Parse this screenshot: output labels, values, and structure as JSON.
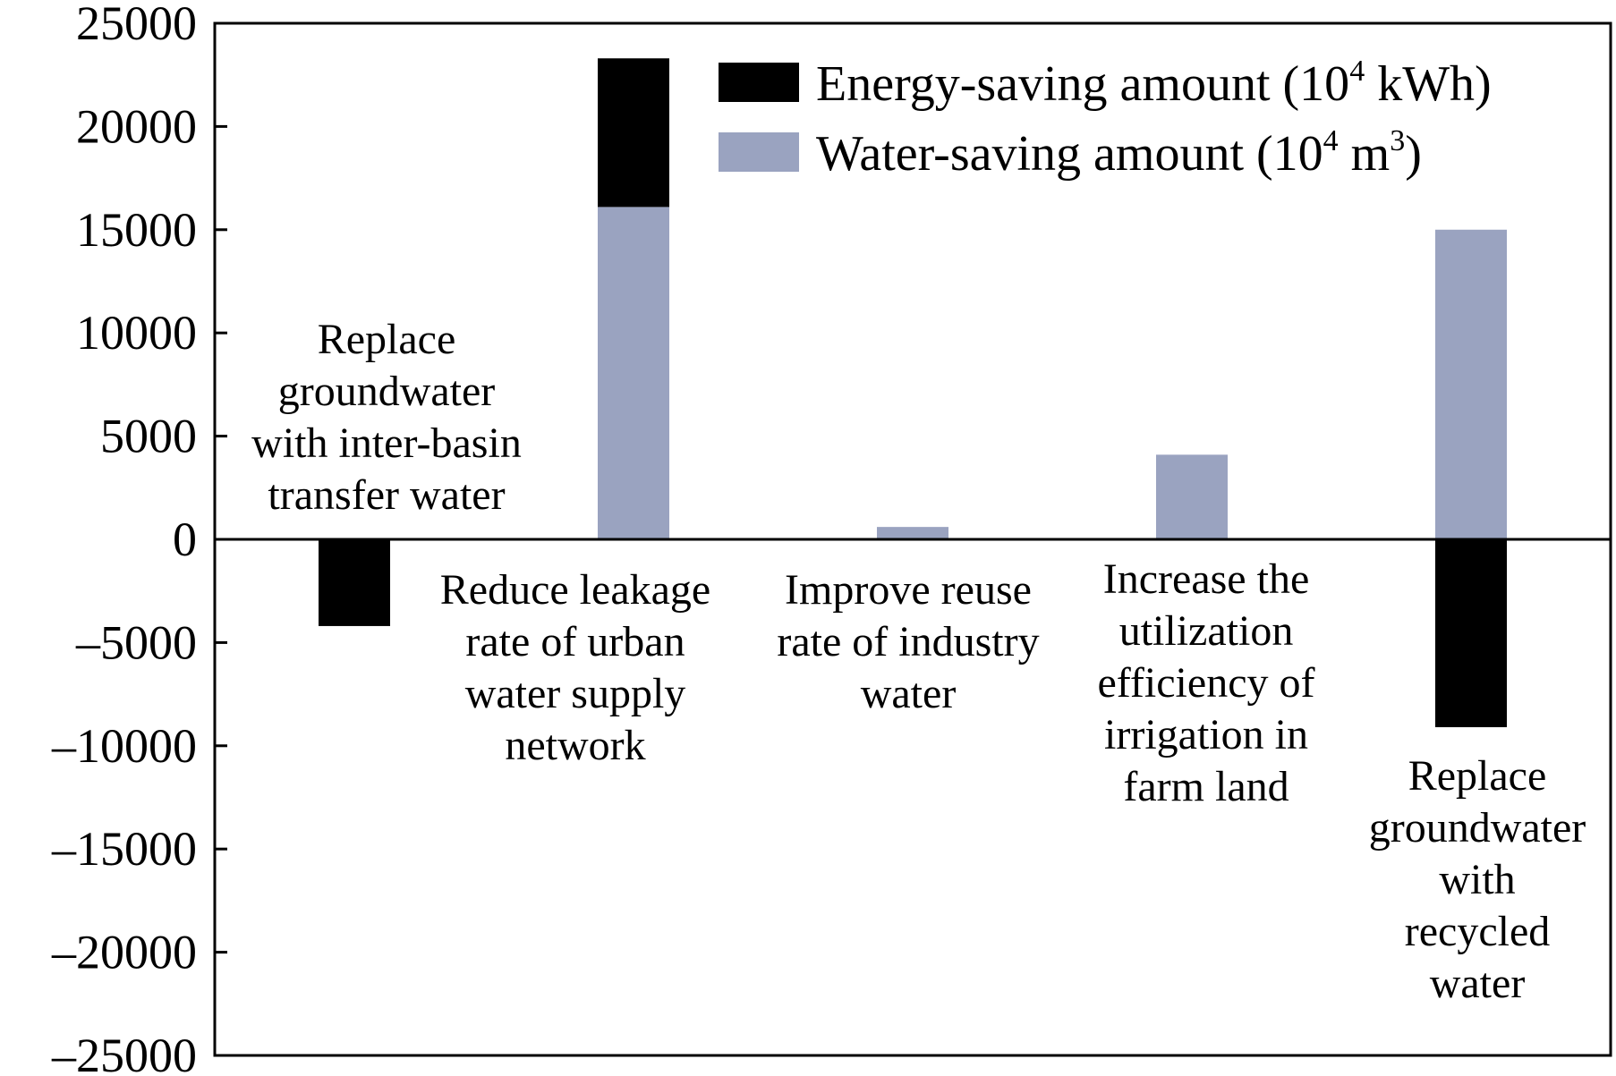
{
  "chart_data": {
    "type": "bar",
    "stacked": true,
    "categories": [
      "Replace groundwater with inter-basin transfer water",
      "Reduce leakage rate of urban water supply network",
      "Improve reuse rate of industry water",
      "Increase the utilization efficiency of irrigation in farm land",
      "Replace groundwater with recycled water"
    ],
    "category_lines": [
      [
        "Replace",
        "groundwater",
        "with inter-basin",
        "transfer water"
      ],
      [
        "Reduce leakage",
        "rate of urban",
        "water supply",
        "network"
      ],
      [
        "Improve reuse",
        "rate of industry",
        "water"
      ],
      [
        "Increase the",
        "utilization",
        "efficiency of",
        "irrigation in",
        "farm land"
      ],
      [
        "Replace",
        "groundwater",
        "with",
        "recycled",
        "water"
      ]
    ],
    "series": [
      {
        "name": "Water-saving amount (10^4 m^3)",
        "legend_main": "Water-saving amount (10",
        "legend_sup": "4",
        "legend_mid": " m",
        "legend_sup2": "3",
        "legend_end": ")",
        "color": "#9aa3c0",
        "values": [
          0,
          16100,
          600,
          4100,
          15000
        ]
      },
      {
        "name": "Energy-saving amount (10^4 kWh)",
        "legend_main": "Energy-saving amount (10",
        "legend_sup": "4",
        "legend_mid": " kWh)",
        "legend_sup2": "",
        "legend_end": "",
        "color": "#000000",
        "values": [
          -4200,
          7200,
          0,
          0,
          -9100
        ]
      }
    ],
    "yticks": [
      "25000",
      "20000",
      "15000",
      "10000",
      "5000",
      "0",
      "–5000",
      "–10000",
      "–15000",
      "–20000",
      "–25000"
    ],
    "ylim": [
      -25000,
      25000
    ],
    "xlabel": "",
    "ylabel": "",
    "legend_position": "top-right",
    "grid": false
  }
}
